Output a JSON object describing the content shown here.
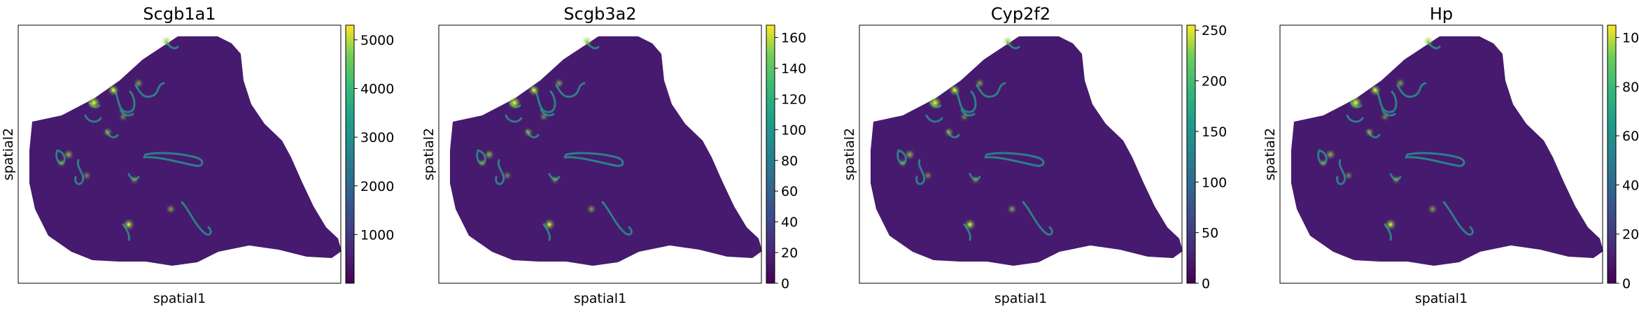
{
  "chart_data": [
    {
      "type": "heatmap",
      "title": "Scgb1a1",
      "xlabel": "spatial1",
      "ylabel": "spatial2",
      "colormap": "viridis",
      "colorbar": {
        "range": [
          0,
          5300
        ],
        "ticks": [
          1000,
          2000,
          3000,
          4000,
          5000
        ]
      }
    },
    {
      "type": "heatmap",
      "title": "Scgb3a2",
      "xlabel": "spatial1",
      "ylabel": "spatial2",
      "colormap": "viridis",
      "colorbar": {
        "range": [
          0,
          168
        ],
        "ticks": [
          0,
          20,
          40,
          60,
          80,
          100,
          120,
          140,
          160
        ]
      }
    },
    {
      "type": "heatmap",
      "title": "Cyp2f2",
      "xlabel": "spatial1",
      "ylabel": "spatial2",
      "colormap": "viridis",
      "colorbar": {
        "range": [
          0,
          255
        ],
        "ticks": [
          0,
          50,
          100,
          150,
          200,
          250
        ]
      }
    },
    {
      "type": "heatmap",
      "title": "Hp",
      "xlabel": "spatial1",
      "ylabel": "spatial2",
      "colormap": "viridis",
      "colorbar": {
        "range": [
          0,
          105
        ],
        "ticks": [
          0,
          20,
          40,
          60,
          80,
          100
        ]
      }
    }
  ]
}
